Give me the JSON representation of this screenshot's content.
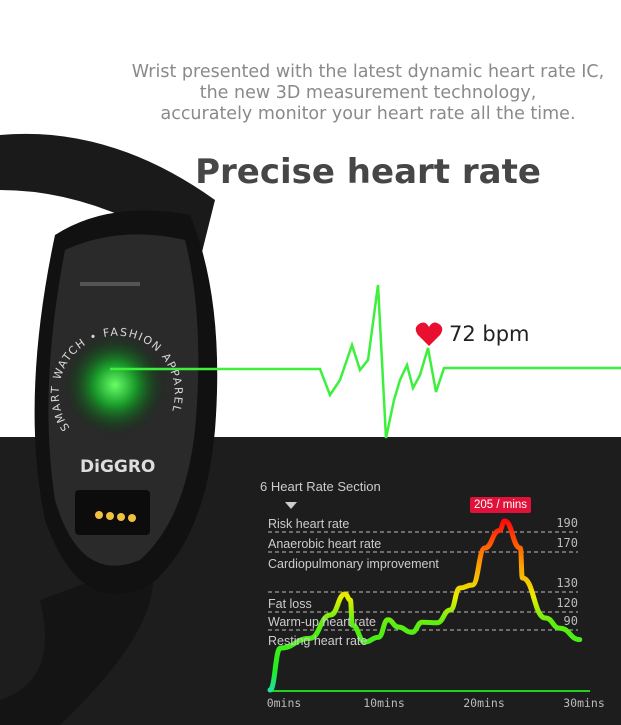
{
  "header": {
    "subtitle_lines": [
      "Wrist presented with the latest dynamic heart rate IC,",
      "the new 3D measurement technology,",
      "accurately monitor your heart rate all the time."
    ],
    "title": "Precise heart rate"
  },
  "watch": {
    "brand": "DiGGRO",
    "ring_text": "SMART WATCH • FASHION APPAREL"
  },
  "heart_readout": {
    "icon": "heart-icon",
    "value": "72 bpm",
    "color": "#e8102e"
  },
  "colors": {
    "dark_bg": "#1d1d1d",
    "ecg_line": "#3cf03c",
    "peak_badge": "#e0123a"
  },
  "chart_data": {
    "type": "line",
    "title": "6 Heart Rate Section",
    "zones": [
      {
        "label": "Risk heart rate",
        "value": "190"
      },
      {
        "label": "Anaerobic heart rate",
        "value": "170"
      },
      {
        "label": "Cardiopulmonary improvement",
        "value": ""
      },
      {
        "label": "",
        "value": "130"
      },
      {
        "label": "Fat loss",
        "value": "120"
      },
      {
        "label": "Warm-up heart rate",
        "value": "90"
      },
      {
        "label": "Resting heart rate",
        "value": ""
      }
    ],
    "x_ticks": [
      "0mins",
      "10mins",
      "20mins",
      "30mins"
    ],
    "xlim": [
      0,
      30
    ],
    "peak_label": "205 / mins",
    "series": [
      {
        "x": [
          0,
          1,
          3.8,
          5.8,
          7.2,
          7.7,
          7.9,
          9.1,
          10.4,
          11.3,
          12.3,
          13.6,
          14.6,
          16,
          17.3,
          18.2,
          19.4,
          20.6,
          22,
          22.5,
          24,
          24.2,
          26.4,
          27.8,
          29.7
        ],
        "y": [
          40,
          75,
          83,
          115,
          129,
          126,
          98,
          80,
          84,
          107,
          95,
          88,
          103,
          102,
          121,
          134,
          137,
          174,
          192,
          205,
          174,
          144,
          110,
          93,
          82
        ]
      }
    ],
    "color_scale": "green-yellow-red by heart rate"
  }
}
